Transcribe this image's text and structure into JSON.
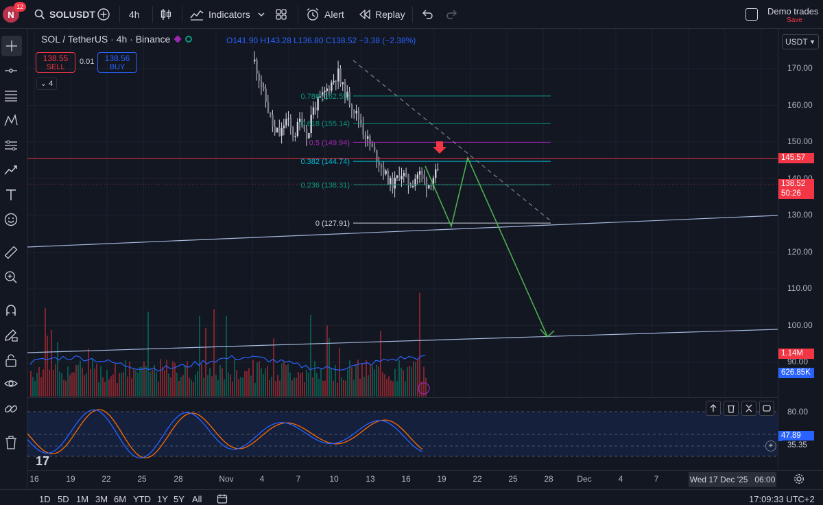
{
  "topbar": {
    "avatar_letter": "N",
    "notification_count": "12",
    "symbol": "SOLUSDT",
    "interval": "4h",
    "indicators_label": "Indicators",
    "alert_label": "Alert",
    "replay_label": "Replay",
    "demo_title": "Demo trades",
    "demo_sub": "Save"
  },
  "legend": {
    "title": "SOL / TetherUS · 4h · Binance",
    "ohlc_o": "O141.90",
    "ohlc_h": "H143.28",
    "ohlc_l": "L136.80",
    "ohlc_c": "C138.52",
    "ohlc_change": "−3.38 (−2.38%)"
  },
  "trade": {
    "sell_price": "138.55",
    "sell_label": "SELL",
    "spread": "0.01",
    "buy_price": "138.56",
    "buy_label": "BUY",
    "indicators_count": "4"
  },
  "fib": {
    "l786": "0.786 (162.55)",
    "l618": "0.618 (155.14)",
    "l5": "0.5 (149.94)",
    "l382": "0.382 (144.74)",
    "l236": "0.236 (138.31)",
    "l0": "0 (127.91)"
  },
  "price_axis": {
    "currency": "USDT",
    "ticks": [
      "170.00",
      "160.00",
      "150.00",
      "140.00",
      "130.00",
      "120.00",
      "110.00",
      "100.00",
      "90.00"
    ],
    "tag_resistance": "145.57",
    "tag_last_price": "138.52",
    "tag_countdown": "50:26",
    "tag_vol1": "1.14M",
    "tag_vol2": "626.85K",
    "osc_ticks": [
      "80.00"
    ],
    "osc_tag_k": "47.89",
    "osc_tag_d": "35.35",
    "colors": {
      "up": "#089981",
      "down": "#f23645",
      "blue": "#2962ff"
    }
  },
  "time_axis": {
    "labels": [
      "16",
      "19",
      "22",
      "25",
      "28",
      "Nov",
      "4",
      "7",
      "10",
      "13",
      "16",
      "19",
      "22",
      "25",
      "28",
      "Dec",
      "4",
      "7"
    ],
    "crosshair_date": "Wed 17 Dec '25",
    "crosshair_time": "06:00"
  },
  "bottombar": {
    "ranges": [
      "1D",
      "5D",
      "1M",
      "3M",
      "6M",
      "YTD",
      "1Y",
      "5Y",
      "All"
    ],
    "clock": "17:09:33 UTC+2"
  }
}
